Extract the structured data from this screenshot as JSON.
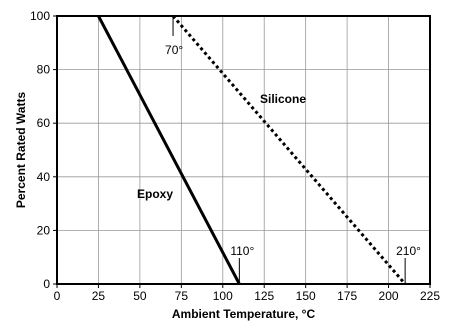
{
  "chart_data": {
    "type": "line",
    "xlabel": "Ambient Temperature, °C",
    "ylabel": "Percent Rated Watts",
    "xlim": [
      0,
      225
    ],
    "ylim": [
      0,
      100
    ],
    "x_ticks": [
      "0",
      "25",
      "50",
      "75",
      "100",
      "125",
      "150",
      "175",
      "200",
      "225"
    ],
    "y_ticks": [
      "0",
      "20",
      "40",
      "60",
      "80",
      "100"
    ],
    "grid": true,
    "series": [
      {
        "name": "Epoxy",
        "style": "solid",
        "color": "#000000",
        "points": [
          [
            25,
            100
          ],
          [
            110,
            0
          ]
        ]
      },
      {
        "name": "Silicone",
        "style": "dotted",
        "color": "#000000",
        "points": [
          [
            70,
            100
          ],
          [
            210,
            0
          ]
        ]
      }
    ],
    "annotations": [
      {
        "text": "70°",
        "x": 70,
        "y": 100,
        "anchor": "below"
      },
      {
        "text": "110°",
        "x": 110,
        "y": 0,
        "anchor": "above"
      },
      {
        "text": "210°",
        "x": 210,
        "y": 0,
        "anchor": "above"
      }
    ]
  }
}
